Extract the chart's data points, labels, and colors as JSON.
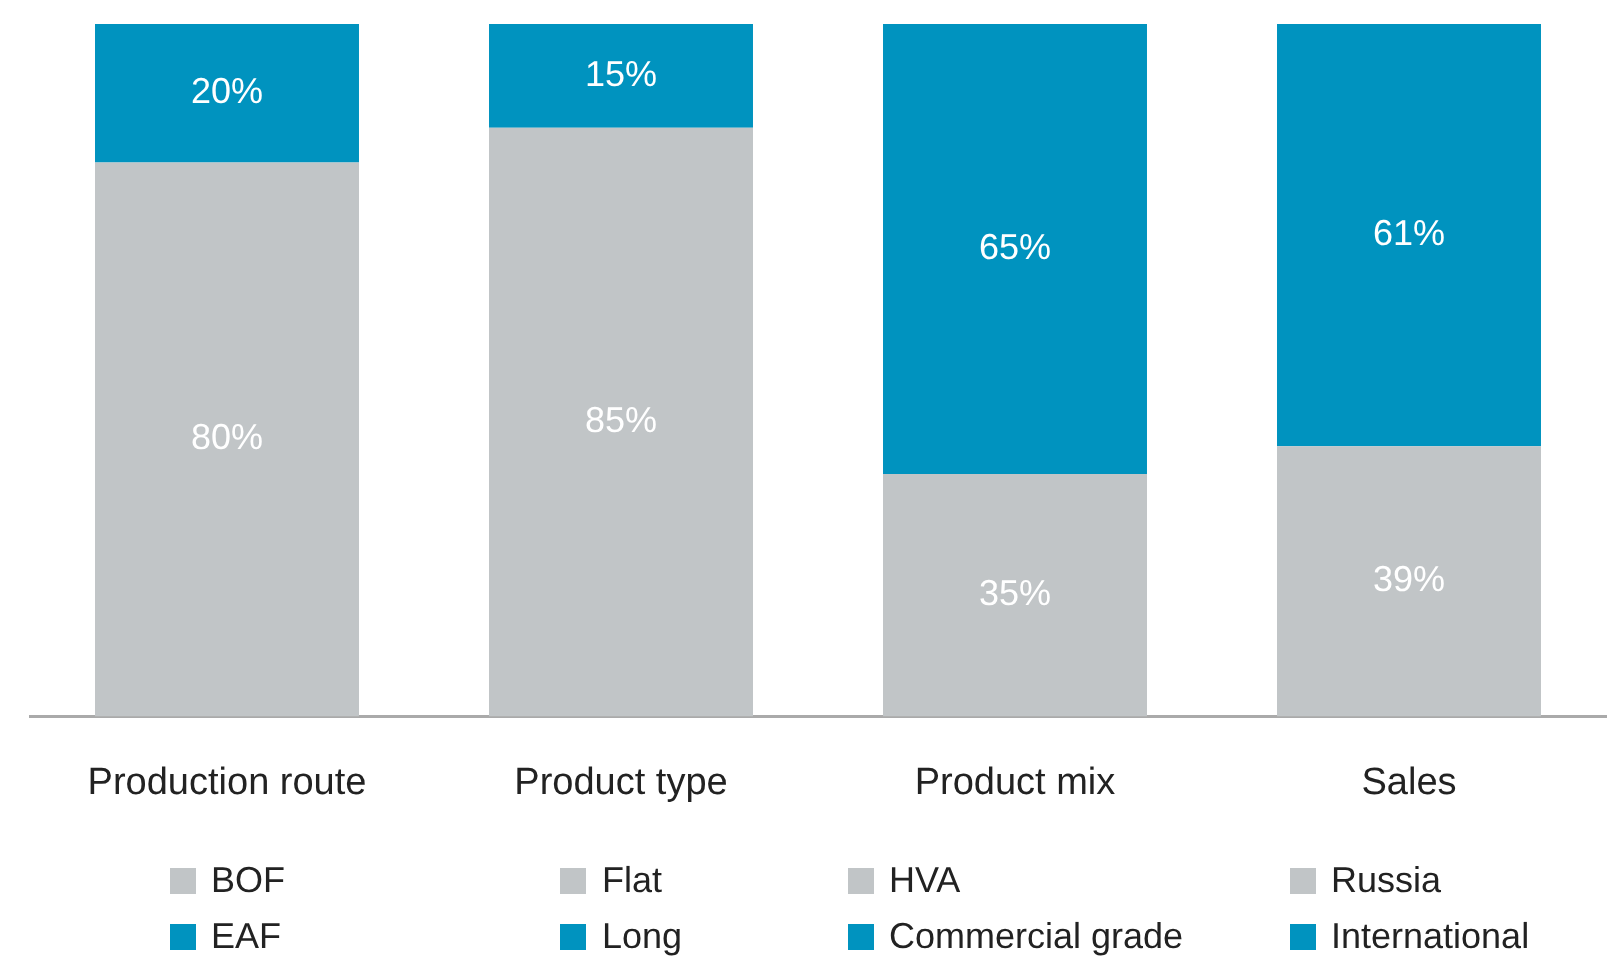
{
  "chart_data": {
    "type": "bar",
    "stacked": true,
    "categories": [
      "Production route",
      "Product type",
      "Product mix",
      "Sales"
    ],
    "series": [
      {
        "name": "BOF",
        "color": "#c1c5c7",
        "values": [
          80,
          null,
          null,
          null
        ],
        "value_labels": [
          "80%",
          null,
          null,
          null
        ]
      },
      {
        "name": "EAF",
        "color": "#0093bf",
        "values": [
          20,
          null,
          null,
          null
        ],
        "value_labels": [
          "20%",
          null,
          null,
          null
        ]
      },
      {
        "name": "Flat",
        "color": "#c1c5c7",
        "values": [
          null,
          85,
          null,
          null
        ],
        "value_labels": [
          null,
          "85%",
          null,
          null
        ]
      },
      {
        "name": "Long",
        "color": "#0093bf",
        "values": [
          null,
          15,
          null,
          null
        ],
        "value_labels": [
          null,
          "15%",
          null,
          null
        ]
      },
      {
        "name": "HVA",
        "color": "#c1c5c7",
        "values": [
          null,
          null,
          35,
          null
        ],
        "value_labels": [
          null,
          null,
          "35%",
          null
        ]
      },
      {
        "name": "Commercial grade",
        "color": "#0093bf",
        "values": [
          null,
          null,
          65,
          null
        ],
        "value_labels": [
          null,
          null,
          "65%",
          null
        ]
      },
      {
        "name": "Russia",
        "color": "#c1c5c7",
        "values": [
          null,
          null,
          null,
          39
        ],
        "value_labels": [
          null,
          null,
          null,
          "39%"
        ]
      },
      {
        "name": "International",
        "color": "#0093bf",
        "values": [
          null,
          null,
          null,
          61
        ],
        "value_labels": [
          null,
          null,
          null,
          "61%"
        ]
      }
    ],
    "tick_labels": "x",
    "legend": "bottom",
    "grid": false
  }
}
